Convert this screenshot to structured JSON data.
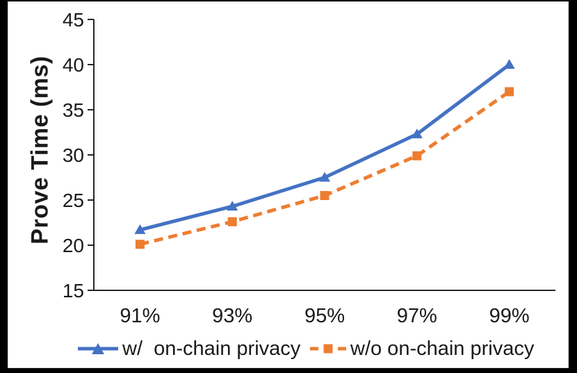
{
  "figure": {
    "background_color": "#000000",
    "panel_color": "#ffffff",
    "axis_color": "#262626",
    "text_color": "#1a1a1a"
  },
  "chart_data": {
    "type": "line",
    "title": "",
    "xlabel": "",
    "ylabel": "Prove Time (ms)",
    "categories": [
      "91%",
      "93%",
      "95%",
      "97%",
      "99%"
    ],
    "series": [
      {
        "name": "w/  on-chain privacy",
        "values": [
          21.7,
          24.3,
          27.5,
          32.3,
          40.0
        ],
        "color": "#4472C4",
        "marker": "triangle",
        "line_style": "solid"
      },
      {
        "name": "w/o on-chain privacy",
        "values": [
          20.1,
          22.6,
          25.5,
          29.9,
          37.0
        ],
        "color": "#ED7D31",
        "marker": "square",
        "line_style": "dashed"
      }
    ],
    "ylim": [
      15,
      45
    ],
    "ytick_step": 5,
    "grid": false,
    "legend_position": "bottom"
  }
}
